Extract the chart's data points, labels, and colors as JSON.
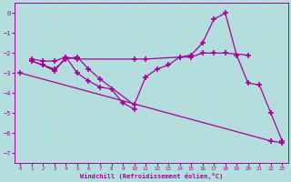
{
  "xlabel": "Windchill (Refroidissement éolien,°C)",
  "xlim": [
    -0.5,
    23.5
  ],
  "ylim": [
    -7.5,
    0.5
  ],
  "xticks": [
    0,
    1,
    2,
    3,
    4,
    5,
    6,
    7,
    8,
    9,
    10,
    11,
    12,
    13,
    14,
    15,
    16,
    17,
    18,
    19,
    20,
    21,
    22,
    23
  ],
  "yticks": [
    0,
    -1,
    -2,
    -3,
    -4,
    -5,
    -6,
    -7
  ],
  "bg_color": "#b2dede",
  "grid_color": "#c0d4d4",
  "line_color": "#aa0099",
  "series": [
    {
      "x": [
        1,
        2,
        3,
        4,
        5,
        10,
        11,
        14,
        15,
        16,
        17,
        18,
        20
      ],
      "y": [
        -2.3,
        -2.4,
        -2.4,
        -2.2,
        -2.3,
        -2.3,
        -2.3,
        -2.2,
        -2.2,
        -2.0,
        -2.0,
        -2.0,
        -2.1
      ]
    },
    {
      "x": [
        0,
        22,
        23
      ],
      "y": [
        -3.0,
        -6.4,
        -6.5
      ]
    },
    {
      "x": [
        1,
        2,
        3,
        4,
        5,
        6,
        7,
        10,
        11,
        12,
        13,
        14,
        15,
        16,
        17,
        18,
        19,
        20,
        21,
        22,
        23
      ],
      "y": [
        -2.4,
        -2.6,
        -2.8,
        -2.3,
        -2.2,
        -2.8,
        -3.3,
        -4.6,
        -3.2,
        -2.8,
        -2.6,
        -2.2,
        -2.1,
        -1.5,
        -0.3,
        0.0,
        -2.1,
        -3.5,
        -3.6,
        -5.0,
        -6.4
      ]
    },
    {
      "x": [
        1,
        2,
        3,
        4,
        5,
        6,
        7,
        8,
        9,
        10
      ],
      "y": [
        -2.4,
        -2.6,
        -2.9,
        -2.2,
        -3.0,
        -3.4,
        -3.7,
        -3.8,
        -4.5,
        -4.8
      ]
    }
  ]
}
